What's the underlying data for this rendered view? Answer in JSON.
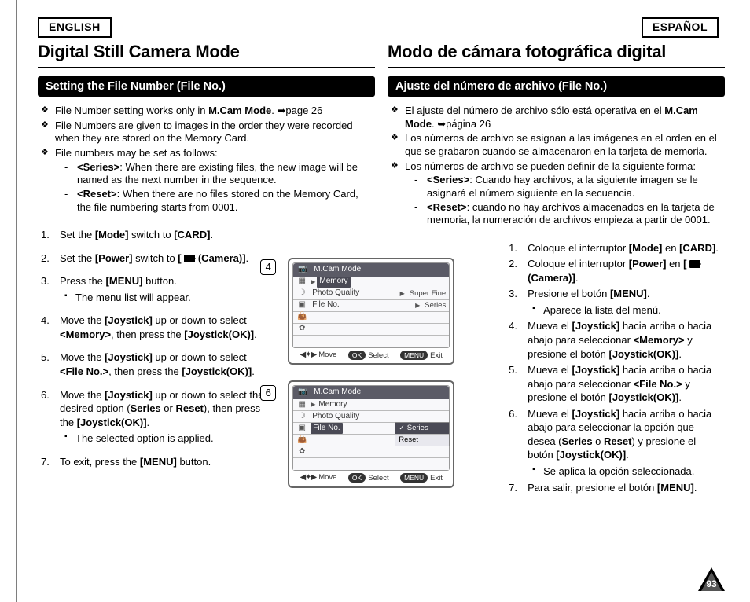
{
  "lang": {
    "left": "ENGLISH",
    "right": "ESPAÑOL"
  },
  "en": {
    "title": "Digital Still Camera Mode",
    "section": "Setting the File Number (File No.)",
    "b1": "File Number setting works only in <b>M.Cam Mode</b>. <span class='arrow'>➥</span>page 26",
    "b2": "File Numbers are given to images in the order they were recorded when they are stored on the Memory Card.",
    "b3": "File numbers may be set as follows:",
    "b3a": "<b>&lt;Series&gt;</b>: When there are existing files, the new image will be named as the next number in the sequence.",
    "b3b": "<b>&lt;Reset&gt;</b>: When there are no files stored on the Memory Card, the file numbering starts from 0001.",
    "s1": "Set the <b>[Mode]</b> switch to <b>[CARD]</b>.",
    "s2": "Set the <b>[Power]</b> switch to <b>[ <span class='cam-ic'></span> (Camera)]</b>.",
    "s3": "Press the <b>[MENU]</b> button.",
    "s3a": "The menu list will appear.",
    "s4": "Move the <b>[Joystick]</b> up or down to select <b>&lt;Memory&gt;</b>, then press the <b>[Joystick(OK)]</b>.",
    "s5": "Move the <b>[Joystick]</b> up or down to select <b>&lt;File No.&gt;</b>, then press the <b>[Joystick(OK)]</b>.",
    "s6": "Move the <b>[Joystick]</b> up or down to select the desired option (<b>Series</b> or <b>Reset</b>), then press the <b>[Joystick(OK)]</b>.",
    "s6a": "The selected option is applied.",
    "s7": "To exit, press the <b>[MENU]</b> button."
  },
  "es": {
    "title": "Modo de cámara fotográfica digital",
    "section": "Ajuste del número de archivo (File No.)",
    "b1": "El ajuste del número de archivo sólo está operativa en el <b>M.Cam Mode</b>. <span class='arrow'>➥</span>página 26",
    "b2": "Los números de archivo se asignan a las imágenes en el orden en el que se grabaron cuando se almacenaron en la tarjeta de memoria.",
    "b3": "Los números de archivo se pueden definir de la siguiente forma:",
    "b3a": "<b>&lt;Series&gt;</b>: Cuando hay archivos, a la siguiente imagen se le asignará el número siguiente en la secuencia.",
    "b3b": "<b>&lt;Reset&gt;</b>: cuando no hay archivos almacenados en la tarjeta de memoria, la numeración de archivos empieza a partir de 0001.",
    "s1": "Coloque el interruptor <b>[Mode]</b> en <b>[CARD]</b>.",
    "s2": "Coloque el interruptor <b>[Power]</b> en <b>[ <span class='cam-ic'></span> (Camera)]</b>.",
    "s3": "Presione el botón <b>[MENU]</b>.",
    "s3a": "Aparece la lista del menú.",
    "s4": "Mueva el <b>[Joystick]</b> hacia arriba o hacia abajo para seleccionar <b>&lt;Memory&gt;</b> y presione el botón <b>[Joystick(OK)]</b>.",
    "s5": "Mueva el <b>[Joystick]</b> hacia arriba o hacia abajo para seleccionar <b>&lt;File No.&gt;</b> y presione el botón <b>[Joystick(OK)]</b>.",
    "s6": "Mueva el <b>[Joystick]</b> hacia arriba o hacia abajo para seleccionar la opción que desea (<b>Series</b> o <b>Reset</b>) y presione el botón <b>[Joystick(OK)]</b>.",
    "s6a": "Se aplica la opción seleccionada.",
    "s7": "Para salir, presione el botón <b>[MENU]</b>."
  },
  "lcd": {
    "title": "M.Cam Mode",
    "memory": "Memory",
    "photo": "Photo Quality",
    "fileno": "File No.",
    "superfine": "Super Fine",
    "series": "Series",
    "reset": "Reset",
    "move": "Move",
    "select": "Select",
    "exit": "Exit",
    "ok": "OK",
    "menu": "MENU"
  },
  "callouts": {
    "n4": "4",
    "n6": "6"
  },
  "pageno": "93"
}
